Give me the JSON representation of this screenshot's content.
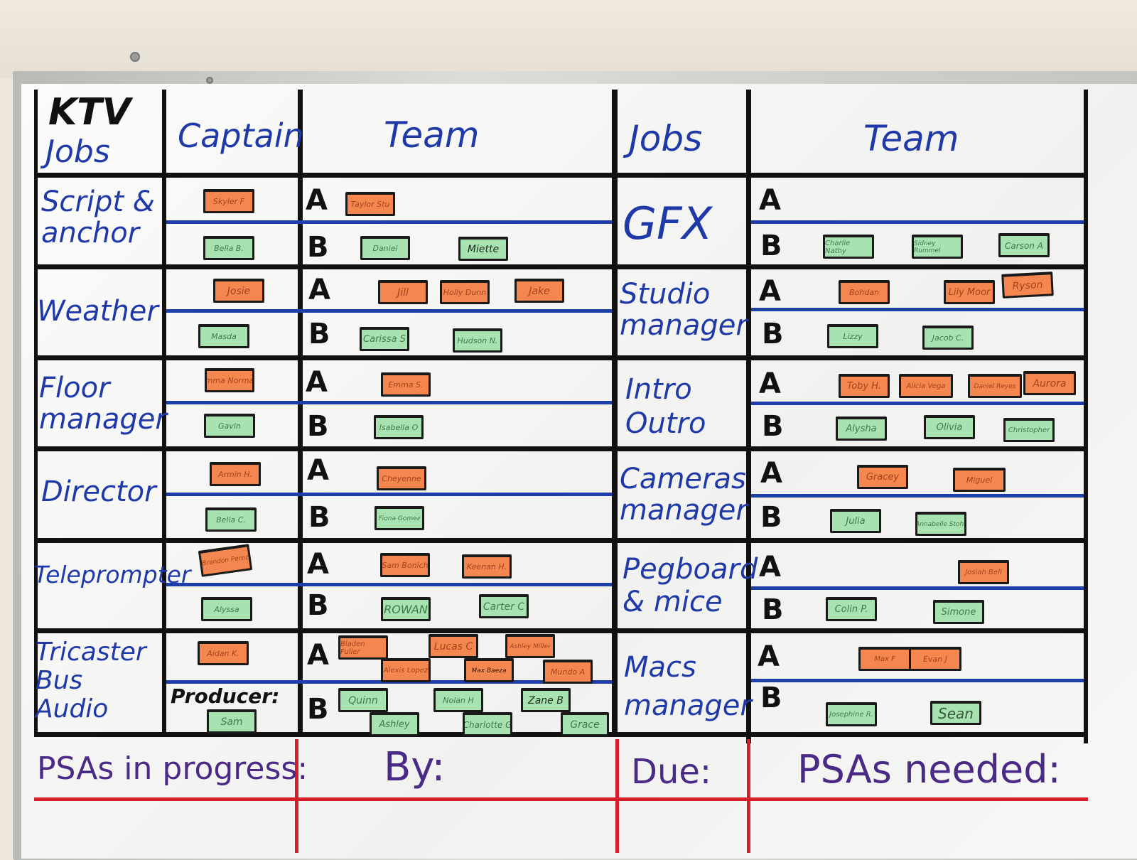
{
  "board": {
    "title_line1": "KTV",
    "title_line2": "Jobs",
    "header_captain": "Captain",
    "header_team_left": "Team",
    "header_jobs_right": "Jobs",
    "header_team_right": "Team"
  },
  "colors": {
    "ink_blue": "#1f3aa8",
    "grid_black": "#111111",
    "tape_blue": "#1e3fa8",
    "tape_red": "#d41e2a",
    "magnet_orange": "#f4874f",
    "magnet_green": "#a7e2b0",
    "marker_purple": "#4a2a86"
  },
  "left_jobs": [
    "Script & anchor",
    "Weather",
    "Floor manager",
    "Director",
    "Teleprompter",
    "Tricaster Bus Audio"
  ],
  "right_jobs": [
    "GFX",
    "Studio manager",
    "Intro Outro",
    "Cameras manager",
    "Pegboard & mice",
    "Macs manager"
  ],
  "slot_labels": {
    "a": "A",
    "b": "B"
  },
  "producer_label": "Producer:",
  "names": {
    "script_captain_a": "Skyler F",
    "script_captain_b": "Bella B.",
    "script_team_a1": "Taylor Stu",
    "script_team_b1": "Daniel",
    "script_team_b2": "Miette",
    "weather_captain_a": "Josie",
    "weather_captain_b": "Masda",
    "weather_team_a1": "Jill",
    "weather_team_a2": "Holly Dunn",
    "weather_team_a3": "Jake",
    "weather_team_b1": "Carissa S",
    "weather_team_b2": "Hudson N.",
    "floor_captain_a": "Emma Norman",
    "floor_captain_b": "Gavin",
    "floor_team_a1": "Emma S.",
    "floor_team_b1": "Isabella O",
    "director_captain_a": "Armin H.",
    "director_captain_b": "Bella C.",
    "director_team_a1": "Cheyenne",
    "director_team_b1": "Fiona Gomez",
    "tele_captain_a": "Brandon Perez",
    "tele_captain_b": "Alyssa",
    "tele_team_a1": "Sam Bonich",
    "tele_team_a2": "Keenan H.",
    "tele_team_b1": "ROWAN",
    "tele_team_b2": "Carter C",
    "tricaster_captain_a": "Aidan K.",
    "producer": "Sam",
    "tricaster_team_a1": "Bladen Fuller",
    "tricaster_team_a2": "Lucas C",
    "tricaster_team_a3": "Ashley Miller",
    "tricaster_team_a4": "Alexis Lopez",
    "tricaster_team_a5": "Max Baeza",
    "tricaster_team_a6": "Mundo A",
    "tricaster_team_b1": "Quinn",
    "tricaster_team_b2": "Nolan H",
    "tricaster_team_b3": "Zane B",
    "tricaster_team_b4": "Ashley",
    "tricaster_team_b5": "Charlotte G",
    "tricaster_team_b6": "Grace",
    "gfx_team_b1": "Charlie Nathy",
    "gfx_team_b2": "Sidney Rummel",
    "gfx_team_b3": "Carson A",
    "studio_team_a1": "Bohdan",
    "studio_team_a2": "Lily Moor",
    "studio_team_a3": "Ryson",
    "studio_team_b1": "Lizzy",
    "studio_team_b2": "Jacob C.",
    "intro_team_a1": "Toby H.",
    "intro_team_a2": "Alicia Vega",
    "intro_team_a3": "Daniel Reyes",
    "intro_team_a4": "Aurora",
    "intro_team_b1": "Alysha",
    "intro_team_b2": "Olivia",
    "intro_team_b3": "Christopher",
    "cameras_team_a1": "Gracey",
    "cameras_team_a2": "Miguel",
    "cameras_team_b1": "Julia",
    "cameras_team_b2": "Annabelle Stohr",
    "peg_team_a1": "Josiah Bell",
    "peg_team_b1": "Colin P.",
    "peg_team_b2": "Simone",
    "macs_team_a1": "Max F",
    "macs_team_a2": "Evan J",
    "macs_team_b1": "Josephine R.",
    "macs_team_b2": "Sean"
  },
  "footer": {
    "psas_in_progress": "PSAs in progress:",
    "by": "By:",
    "due": "Due:",
    "psas_needed": "PSAs needed:"
  }
}
